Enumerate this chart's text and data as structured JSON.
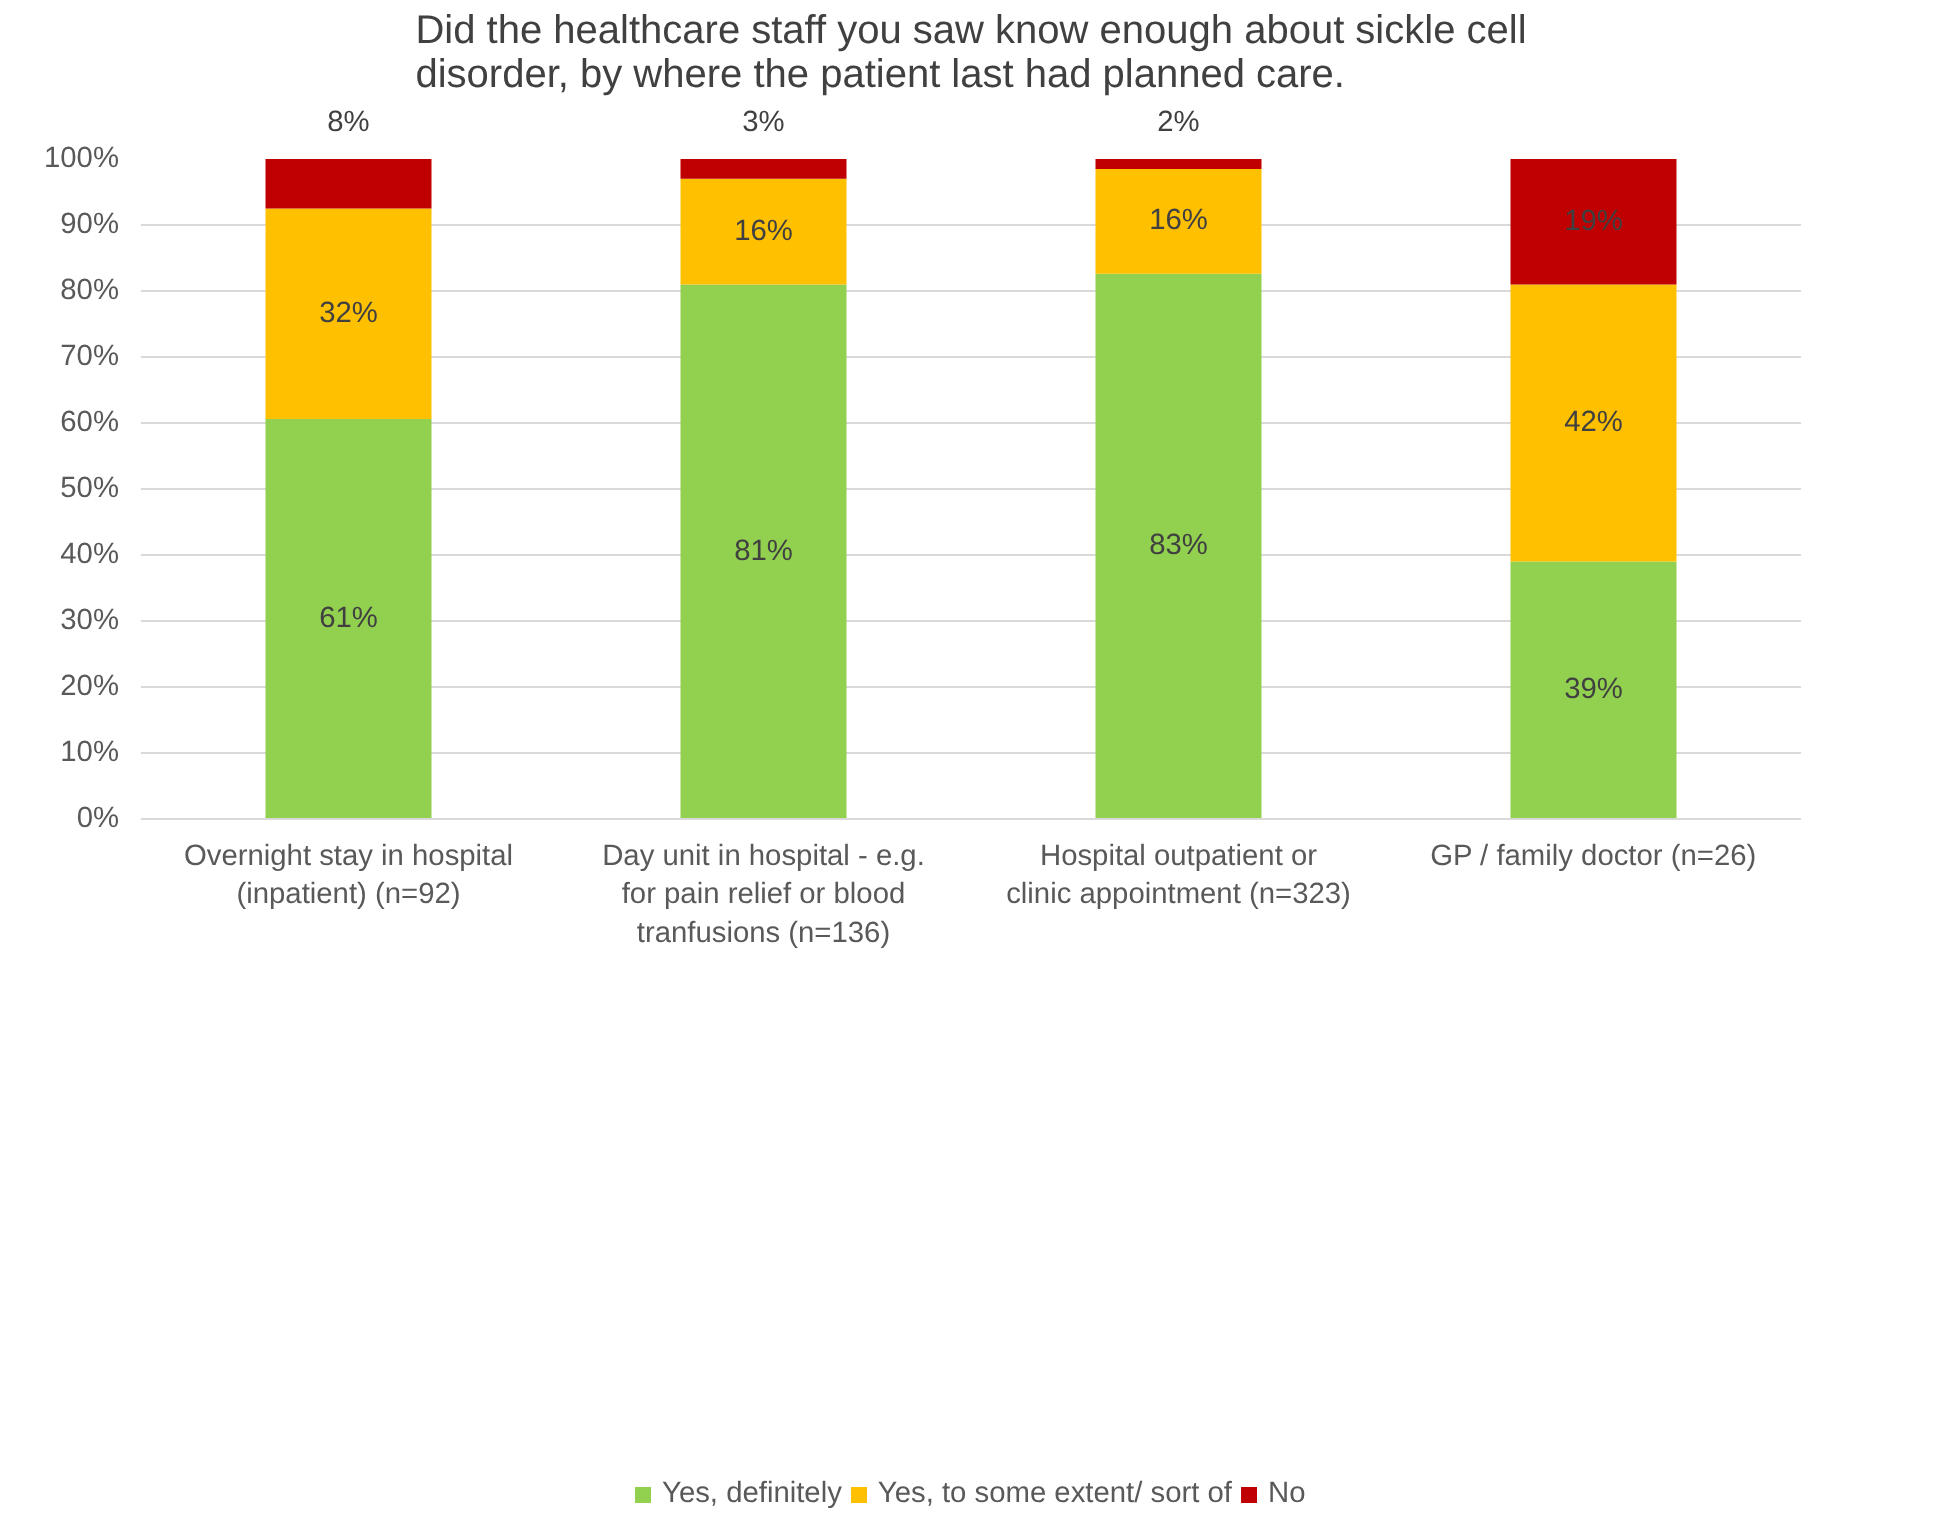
{
  "chart_data": {
    "type": "bar",
    "title": "Did the healthcare staff you saw know enough about sickle cell disorder, by where the patient last had planned care.",
    "categories": [
      "Overnight stay in hospital (inpatient) (n=92)",
      "Day unit in hospital - e.g. for pain relief or blood tranfusions (n=136)",
      "Hospital outpatient or clinic appointment (n=323)",
      "GP / family doctor (n=26)"
    ],
    "stacked": true,
    "series": [
      {
        "name": "Yes, definitely",
        "color": "#92d050",
        "values": [
          60.6,
          81,
          82.6,
          39
        ],
        "value_labels": [
          "61%",
          "81%",
          "83%",
          "39%"
        ]
      },
      {
        "name": "Yes, to some extent/ sort of",
        "color": "#ffc000",
        "values": [
          31.9,
          16,
          15.9,
          42
        ],
        "value_labels": [
          "32%",
          "16%",
          "16%",
          "42%"
        ]
      },
      {
        "name": "No",
        "color": "#c00000",
        "values": [
          7.5,
          3,
          1.5,
          19
        ],
        "value_labels": [
          "8%",
          "3%",
          "2%",
          "19%"
        ]
      }
    ],
    "ylim": [
      0,
      100
    ],
    "yticks": [
      {
        "value": 0,
        "label": "0%"
      },
      {
        "value": 10,
        "label": "10%"
      },
      {
        "value": 20,
        "label": "20%"
      },
      {
        "value": 30,
        "label": "30%"
      },
      {
        "value": 40,
        "label": "40%"
      },
      {
        "value": 50,
        "label": "50%"
      },
      {
        "value": 60,
        "label": "60%"
      },
      {
        "value": 70,
        "label": "70%"
      },
      {
        "value": 80,
        "label": "80%"
      },
      {
        "value": 90,
        "label": "90%"
      },
      {
        "value": 100,
        "label": "100%"
      }
    ],
    "grid": "y",
    "legend": "bottom"
  }
}
